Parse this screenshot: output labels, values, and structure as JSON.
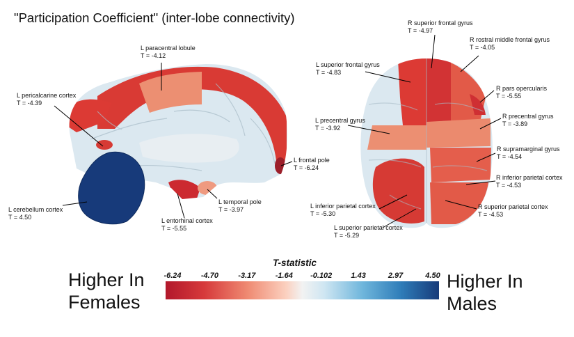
{
  "title": "\"Participation Coefficient\" (inter-lobe connectivity)",
  "labels": {
    "l_paracentral": {
      "name": "L paracentral lobule",
      "t": "T = -4.12"
    },
    "l_pericalcarine": {
      "name": "L pericalcarine cortex",
      "t": "T = -4.39"
    },
    "l_frontal_pole": {
      "name": "L frontal pole",
      "t": "T = -6.24"
    },
    "l_cerebellum": {
      "name": "L cerebellum cortex",
      "t": "T = 4.50"
    },
    "l_temporal_pole": {
      "name": "L temporal pole",
      "t": "T = -3.97"
    },
    "l_entorhinal": {
      "name": "L entorhinal cortex",
      "t": "T = -5.55"
    },
    "r_sup_frontal": {
      "name": "R superior frontal gyrus",
      "t": "T = -4.97"
    },
    "r_rostral_mid_frontal": {
      "name": "R rostral middle frontal gyrus",
      "t": "T = -4.05"
    },
    "l_sup_frontal": {
      "name": "L superior frontal gyrus",
      "t": "T = -4.83"
    },
    "r_pars_opercularis": {
      "name": "R pars opercularis",
      "t": "T = -5.55"
    },
    "l_precentral": {
      "name": "L precentral gyrus",
      "t": "T = -3.92"
    },
    "r_precentral": {
      "name": "R precentral gyrus",
      "t": "T = -3.89"
    },
    "r_supramarginal": {
      "name": "R supramarginal gyrus",
      "t": "T = -4.54"
    },
    "r_inf_parietal": {
      "name": "R inferior parietal cortex",
      "t": "T = -4.53"
    },
    "l_inf_parietal": {
      "name": "L inferior parietal cortex",
      "t": "T = -5.30"
    },
    "r_sup_parietal": {
      "name": "R superior parietal cortex",
      "t": "T = -4.53"
    },
    "l_sup_parietal": {
      "name": "L superior parietal cortex",
      "t": "T = -5.29"
    }
  },
  "colorbar": {
    "title": "T-statistic",
    "ticks": [
      "-6.24",
      "-4.70",
      "-3.17",
      "-1.64",
      "-0.102",
      "1.43",
      "2.97",
      "4.50"
    ],
    "colors": [
      "#b2182b",
      "#ef8a72",
      "#f2f2f2",
      "#6fb6dc",
      "#173b7a"
    ]
  },
  "left_caption": [
    "Higher In",
    "Females"
  ],
  "right_caption": [
    "Higher In",
    "Males"
  ]
}
